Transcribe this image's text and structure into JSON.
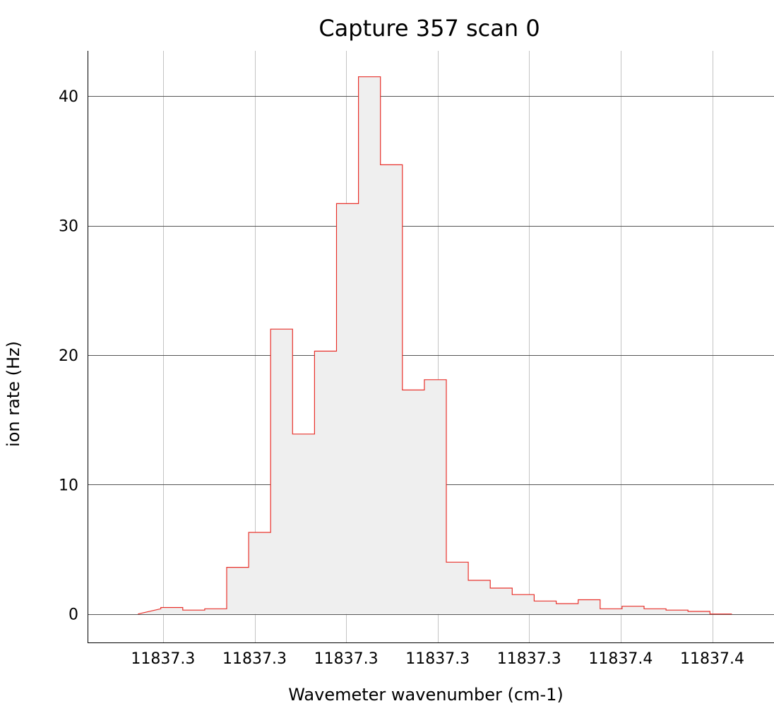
{
  "chart_data": {
    "type": "area",
    "title": "Capture 357 scan 0",
    "xlabel": "Wavemeter wavenumber (cm-1)",
    "ylabel": "ion rate (Hz)",
    "xlim": [
      11837.2635,
      11837.4135
    ],
    "ylim": [
      -2.2,
      43.5
    ],
    "x_tick_values": [
      11837.28,
      11837.3,
      11837.32,
      11837.34,
      11837.36,
      11837.38,
      11837.4
    ],
    "x_tick_labels": [
      "11837.3",
      "11837.3",
      "11837.3",
      "11837.3",
      "11837.3",
      "11837.4",
      "11837.4"
    ],
    "y_ticks": [
      0,
      10,
      20,
      30,
      40
    ],
    "grid": true,
    "fill_color": "#efefef",
    "line_color": "#e8302a",
    "series": [
      {
        "bin_edges": [
          11837.2745,
          11837.2795,
          11837.2843,
          11837.2891,
          11837.2939,
          11837.2987,
          11837.3035,
          11837.3083,
          11837.3131,
          11837.3179,
          11837.3227,
          11837.3275,
          11837.3323,
          11837.3371,
          11837.3419,
          11837.3467,
          11837.3515,
          11837.3563,
          11837.3611,
          11837.3659,
          11837.3707,
          11837.3755,
          11837.3803,
          11837.3851,
          11837.3899,
          11837.3947,
          11837.3995,
          11837.4043
        ],
        "values": [
          0.4,
          0.5,
          0.3,
          0.4,
          3.6,
          6.3,
          22.0,
          13.9,
          20.3,
          31.7,
          41.5,
          34.7,
          17.3,
          18.1,
          4.0,
          2.6,
          2.0,
          1.5,
          1.0,
          0.8,
          1.1,
          0.4,
          0.6,
          0.4,
          0.3,
          0.2,
          0.0
        ],
        "start_value": 0.0
      }
    ]
  }
}
